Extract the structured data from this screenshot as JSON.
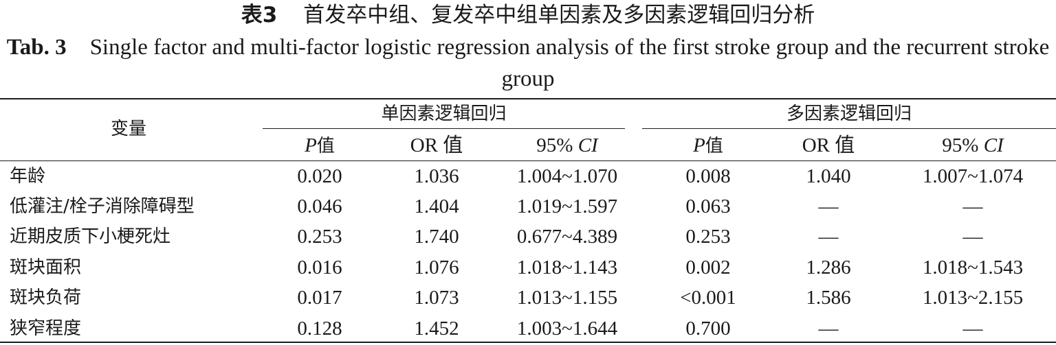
{
  "title_cn": {
    "label": "表3",
    "text": "首发卒中组、复发卒中组单因素及多因素逻辑回归分析"
  },
  "title_en": {
    "label": "Tab. 3",
    "text": "Single factor and multi-factor logistic regression analysis of the first stroke group and the recurrent stroke group"
  },
  "header": {
    "variable": "变量",
    "group_single": "单因素逻辑回归",
    "group_multi": "多因素逻辑回归",
    "p": "P",
    "p_suffix": "值",
    "or": "OR 值",
    "ci_prefix": "95% ",
    "ci": "CI"
  },
  "rows": [
    {
      "name": "年龄",
      "p1": "0.020",
      "or1": "1.036",
      "ci1": "1.004~1.070",
      "p2": "0.008",
      "or2": "1.040",
      "ci2": "1.007~1.074"
    },
    {
      "name": "低灌注/栓子消除障碍型",
      "p1": "0.046",
      "or1": "1.404",
      "ci1": "1.019~1.597",
      "p2": "0.063",
      "or2": "—",
      "ci2": "—"
    },
    {
      "name": "近期皮质下小梗死灶",
      "p1": "0.253",
      "or1": "1.740",
      "ci1": "0.677~4.389",
      "p2": "0.253",
      "or2": "—",
      "ci2": "—"
    },
    {
      "name": "斑块面积",
      "p1": "0.016",
      "or1": "1.076",
      "ci1": "1.018~1.143",
      "p2": "0.002",
      "or2": "1.286",
      "ci2": "1.018~1.543"
    },
    {
      "name": "斑块负荷",
      "p1": "0.017",
      "or1": "1.073",
      "ci1": "1.013~1.155",
      "p2": "<0.001",
      "or2": "1.586",
      "ci2": "1.013~2.155"
    },
    {
      "name": "狭窄程度",
      "p1": "0.128",
      "or1": "1.452",
      "ci1": "1.003~1.644",
      "p2": "0.700",
      "or2": "—",
      "ci2": "—"
    }
  ]
}
